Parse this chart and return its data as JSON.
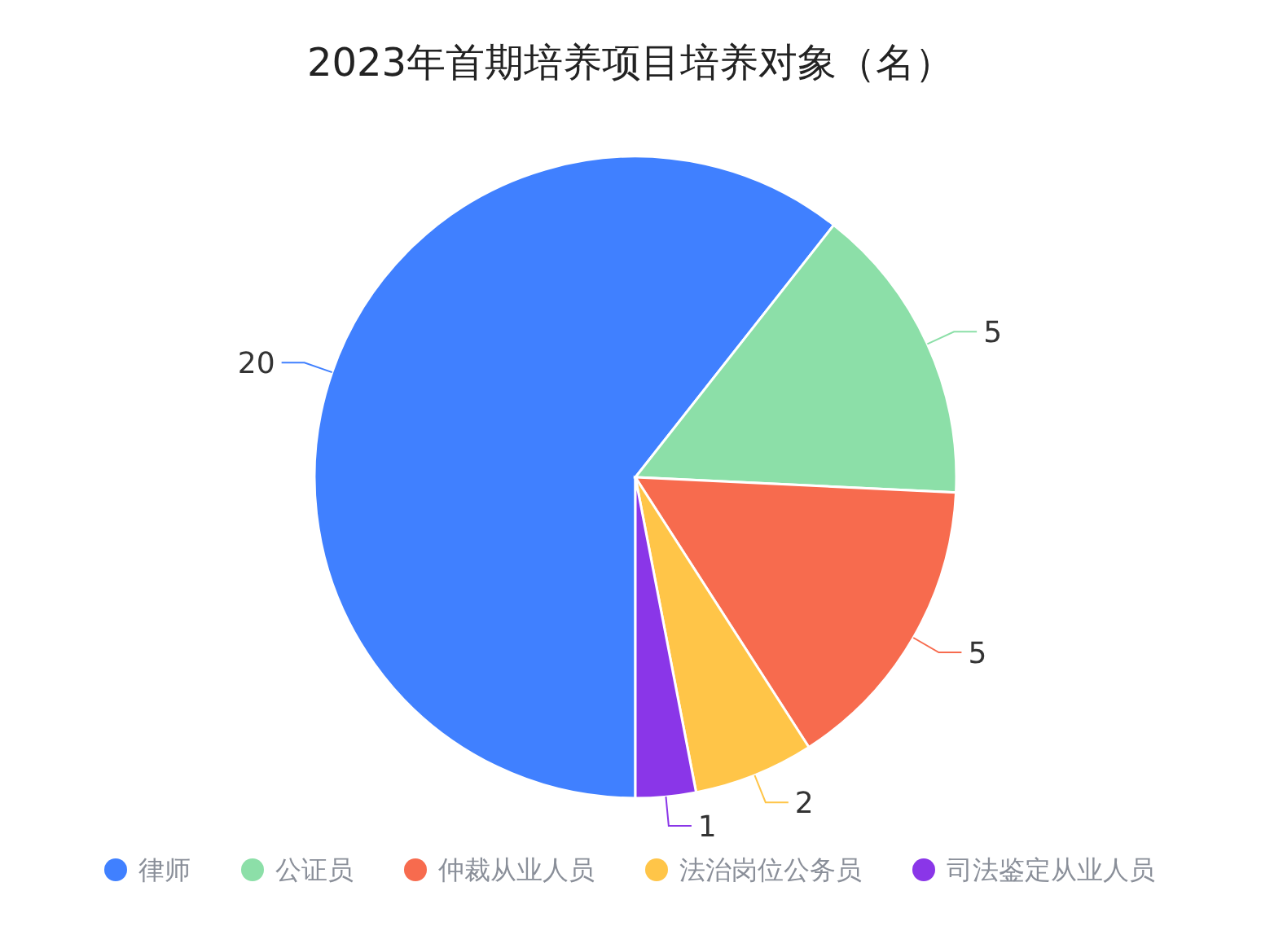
{
  "chart_data": {
    "type": "pie",
    "title": "2023年首期培养项目培养对象（名）",
    "categories": [
      "律师",
      "公证员",
      "仲裁从业人员",
      "法治岗位公务员",
      "司法鉴定从业人员"
    ],
    "values": [
      20,
      5,
      5,
      2,
      1
    ],
    "colors": [
      "#4080ff",
      "#8cdfa8",
      "#f76b4e",
      "#ffc548",
      "#8a36e8"
    ],
    "data_labels": true,
    "legend": "bottom"
  }
}
